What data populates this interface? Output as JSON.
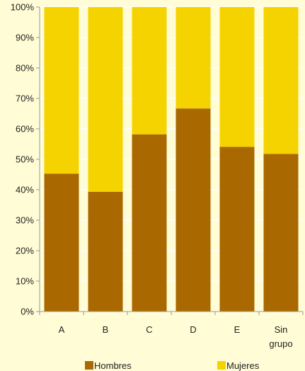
{
  "chart_data": {
    "type": "bar",
    "stacked": true,
    "percent_stacked": true,
    "categories": [
      "A",
      "B",
      "C",
      "D",
      "E",
      "Sin grupo"
    ],
    "category_label_lines": [
      [
        "A"
      ],
      [
        "B"
      ],
      [
        "C"
      ],
      [
        "D"
      ],
      [
        "E"
      ],
      [
        "Sin",
        "grupo"
      ]
    ],
    "series": [
      {
        "name": "Hombres",
        "values": [
          45.3,
          39.3,
          58.2,
          66.7,
          54.1,
          51.8
        ],
        "color": "#A96900"
      },
      {
        "name": "Mujeres",
        "values": [
          54.7,
          60.7,
          41.8,
          33.3,
          45.9,
          48.2
        ],
        "color": "#F5D300"
      }
    ],
    "yticks": [
      "0%",
      "10%",
      "20%",
      "30%",
      "40%",
      "50%",
      "60%",
      "70%",
      "80%",
      "90%",
      "100%"
    ],
    "ylim": [
      0,
      100
    ],
    "grid": true,
    "legend_position": "bottom",
    "background_color": "#FFFCD6",
    "grid_color": "#FFFFFF",
    "axis_color": "#9A9A9A"
  }
}
